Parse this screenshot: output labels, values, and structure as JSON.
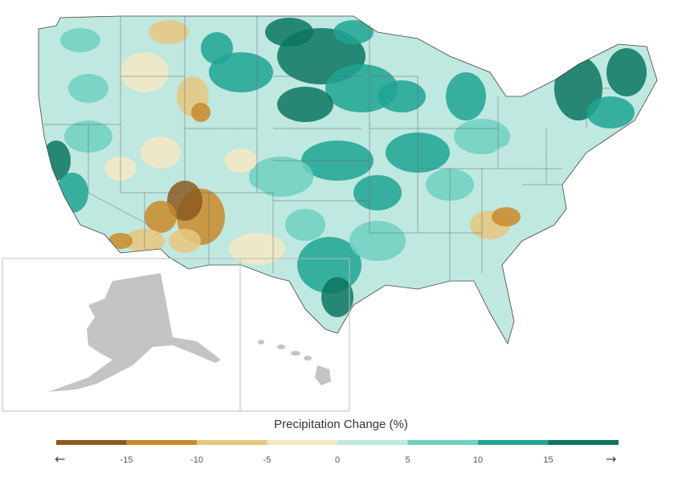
{
  "legend": {
    "title": "Precipitation Change (%)",
    "ticks": [
      "-15",
      "-10",
      "-5",
      "0",
      "5",
      "10",
      "15"
    ],
    "colors": [
      "#8c5a1f",
      "#c98a2a",
      "#e6c77f",
      "#f5e7c3",
      "#bfe8e0",
      "#6fd0c0",
      "#1fa593",
      "#0b7560"
    ],
    "arrow_left": "←",
    "arrow_right": "→"
  },
  "map": {
    "land_fill": "#c4c4c4",
    "inset_border": "#bbbbbb",
    "regions_shown": [
      "Contiguous United States",
      "Alaska",
      "Hawaii"
    ]
  }
}
